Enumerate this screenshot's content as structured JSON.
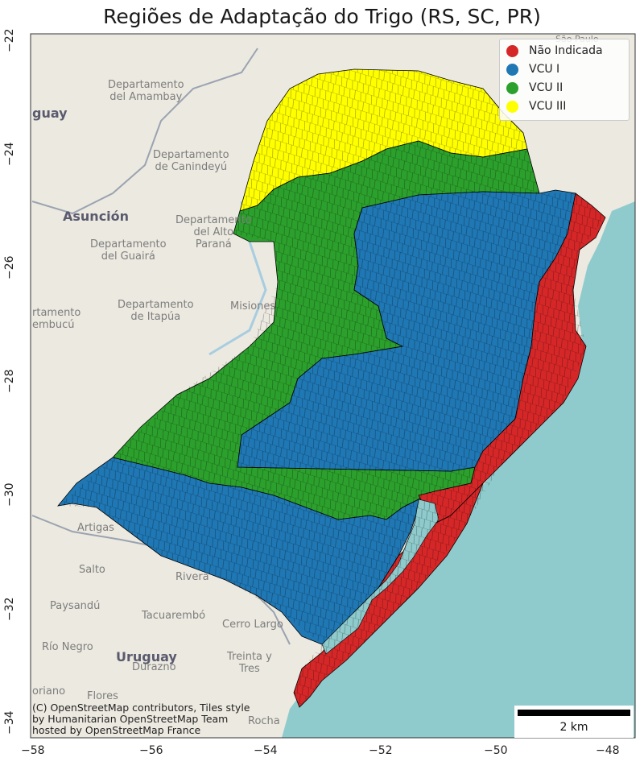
{
  "title": "Regiões de Adaptação do Trigo (RS, SC, PR)",
  "x_ticks": [
    "−58",
    "−56",
    "−54",
    "−52",
    "−50",
    "−48"
  ],
  "y_ticks": [
    "−22",
    "−24",
    "−26",
    "−28",
    "−30",
    "−32",
    "−34"
  ],
  "legend": [
    {
      "label": "Não Indicada",
      "color": "#d62728"
    },
    {
      "label": "VCU I",
      "color": "#1f77b4"
    },
    {
      "label": "VCU II",
      "color": "#2ca02c"
    },
    {
      "label": "VCU III",
      "color": "#ffff00"
    }
  ],
  "basemap_labels": {
    "amambay": "Departamento\ndel Amambay",
    "canindeyu": "Departamento\nde Canindeyú",
    "asuncion": "Asunción",
    "guaira": "Departamento\ndel Guairá",
    "alto_parana": "Departamento\ndel Alto\nParaná",
    "itapua": "Departamento\nde Itapúa",
    "misiones": "Misiones",
    "neembucu": "rtamento\nembucú",
    "paraguay_edge": "guay",
    "sao_paulo": "São Paulo",
    "artigas": "Artigas",
    "salto": "Salto",
    "rivera": "Rivera",
    "paysandu": "Paysandú",
    "tacuarembo": "Tacuarembó",
    "cerro_largo": "Cerro Largo",
    "rio_negro": "Río Negro",
    "uruguay": "Uruguay",
    "durazno": "Durazno",
    "treinta_y_tres": "Treinta y\nTres",
    "soriano": "oriano",
    "flores": "Flores",
    "rocha": "Rocha"
  },
  "attribution": [
    "(C) OpenStreetMap contributors, Tiles style",
    "by Humanitarian OpenStreetMap Team",
    "hosted by OpenStreetMap France"
  ],
  "scalebar_label": "2 km"
}
